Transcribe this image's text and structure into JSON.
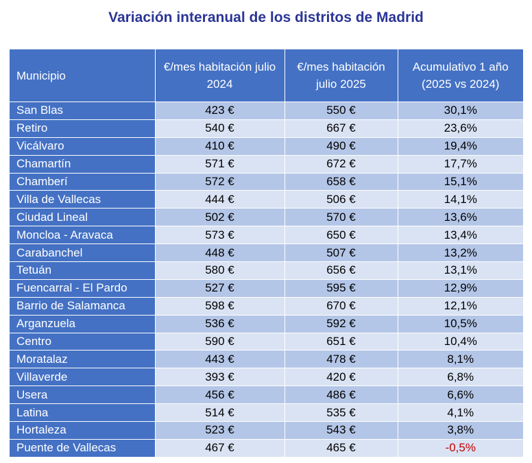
{
  "title": "Variación interanual de los distritos de Madrid",
  "colors": {
    "header": "#4471c4",
    "row_odd": "#b4c6e7",
    "row_even": "#dae3f3",
    "title": "#2a3595",
    "negative": "#c00000"
  },
  "chart_data": {
    "type": "table",
    "title": "Variación interanual de los distritos de Madrid",
    "columns": [
      "Municipio",
      "€/mes habitación julio 2024",
      "€/mes habitación julio 2025",
      "Acumulativo 1 año (2025 vs 2024)"
    ],
    "rows": [
      [
        "San Blas",
        "423 €",
        "550 €",
        "30,1%"
      ],
      [
        "Retiro",
        "540 €",
        "667 €",
        "23,6%"
      ],
      [
        "Vicálvaro",
        "410 €",
        "490 €",
        "19,4%"
      ],
      [
        "Chamartín",
        "571 €",
        "672 €",
        "17,7%"
      ],
      [
        "Chamberí",
        "572 €",
        "658 €",
        "15,1%"
      ],
      [
        "Villa de Vallecas",
        "444 €",
        "506 €",
        "14,1%"
      ],
      [
        "Ciudad Lineal",
        "502 €",
        "570 €",
        "13,6%"
      ],
      [
        "Moncloa - Aravaca",
        "573 €",
        "650 €",
        "13,4%"
      ],
      [
        "Carabanchel",
        "448 €",
        "507 €",
        "13,2%"
      ],
      [
        "Tetuán",
        "580 €",
        "656 €",
        "13,1%"
      ],
      [
        "Fuencarral - El Pardo",
        "527 €",
        "595 €",
        "12,9%"
      ],
      [
        "Barrio de Salamanca",
        "598 €",
        "670 €",
        "12,1%"
      ],
      [
        "Arganzuela",
        "536 €",
        "592 €",
        "10,5%"
      ],
      [
        "Centro",
        "590 €",
        "651 €",
        "10,4%"
      ],
      [
        "Moratalaz",
        "443 €",
        "478 €",
        "8,1%"
      ],
      [
        "Villaverde",
        "393 €",
        "420 €",
        "6,8%"
      ],
      [
        "Usera",
        "456 €",
        "486 €",
        "6,6%"
      ],
      [
        "Latina",
        "514 €",
        "535 €",
        "4,1%"
      ],
      [
        "Hortaleza",
        "523 €",
        "543 €",
        "3,8%"
      ],
      [
        "Puente de Vallecas",
        "467 €",
        "465 €",
        "-0,5%"
      ]
    ]
  }
}
